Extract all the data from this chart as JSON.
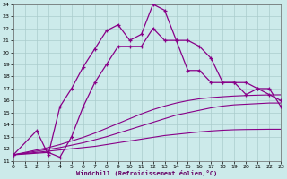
{
  "xlabel": "Windchill (Refroidissement éolien,°C)",
  "background_color": "#cceaea",
  "line_color": "#880088",
  "grid_color": "#aacccc",
  "xlim": [
    0,
    23
  ],
  "ylim": [
    11,
    24
  ],
  "xticks": [
    0,
    1,
    2,
    3,
    4,
    5,
    6,
    7,
    8,
    9,
    10,
    11,
    12,
    13,
    14,
    15,
    16,
    17,
    18,
    19,
    20,
    21,
    22,
    23
  ],
  "yticks": [
    11,
    12,
    13,
    14,
    15,
    16,
    17,
    18,
    19,
    20,
    21,
    22,
    23,
    24
  ],
  "curve1_x": [
    0,
    2,
    3,
    4,
    5,
    6,
    7,
    8,
    9,
    10,
    11,
    12,
    13,
    14,
    15,
    16,
    17,
    18,
    19,
    20,
    21,
    22,
    23
  ],
  "curve1_y": [
    11.5,
    13.5,
    11.5,
    15.5,
    17.0,
    18.8,
    20.3,
    21.8,
    22.3,
    21.0,
    21.5,
    24.0,
    23.5,
    21.0,
    21.0,
    20.5,
    19.5,
    17.5,
    17.5,
    16.5,
    17.0,
    16.5,
    16.0
  ],
  "curve2_x": [
    0,
    3,
    4,
    5,
    6,
    7,
    8,
    9,
    10,
    11,
    12,
    13,
    14,
    15,
    16,
    17,
    18,
    19,
    20,
    21,
    22,
    23
  ],
  "curve2_y": [
    11.5,
    11.7,
    11.3,
    13.0,
    15.5,
    17.5,
    19.0,
    20.5,
    20.5,
    20.5,
    22.0,
    21.0,
    21.0,
    18.5,
    18.5,
    17.5,
    17.5,
    17.5,
    17.5,
    17.0,
    17.0,
    15.5
  ],
  "smooth1_x": [
    0,
    1,
    2,
    3,
    4,
    5,
    6,
    7,
    8,
    9,
    10,
    11,
    12,
    13,
    14,
    15,
    16,
    17,
    18,
    19,
    20,
    21,
    22,
    23
  ],
  "smooth1_y": [
    11.5,
    11.65,
    11.8,
    11.95,
    12.1,
    12.3,
    12.5,
    12.75,
    13.0,
    13.3,
    13.6,
    13.9,
    14.2,
    14.5,
    14.8,
    15.0,
    15.2,
    15.4,
    15.55,
    15.65,
    15.7,
    15.75,
    15.8,
    15.8
  ],
  "smooth2_x": [
    0,
    1,
    2,
    3,
    4,
    5,
    6,
    7,
    8,
    9,
    10,
    11,
    12,
    13,
    14,
    15,
    16,
    17,
    18,
    19,
    20,
    21,
    22,
    23
  ],
  "smooth2_y": [
    11.5,
    11.7,
    11.9,
    12.1,
    12.35,
    12.65,
    12.95,
    13.3,
    13.7,
    14.1,
    14.5,
    14.9,
    15.25,
    15.55,
    15.8,
    16.0,
    16.15,
    16.25,
    16.32,
    16.38,
    16.42,
    16.45,
    16.47,
    16.48
  ],
  "smooth3_x": [
    0,
    1,
    2,
    3,
    4,
    5,
    6,
    7,
    8,
    9,
    10,
    11,
    12,
    13,
    14,
    15,
    16,
    17,
    18,
    19,
    20,
    21,
    22,
    23
  ],
  "smooth3_y": [
    11.5,
    11.6,
    11.7,
    11.8,
    11.9,
    12.0,
    12.1,
    12.2,
    12.35,
    12.5,
    12.65,
    12.8,
    12.95,
    13.1,
    13.2,
    13.3,
    13.4,
    13.48,
    13.54,
    13.58,
    13.6,
    13.61,
    13.62,
    13.62
  ]
}
